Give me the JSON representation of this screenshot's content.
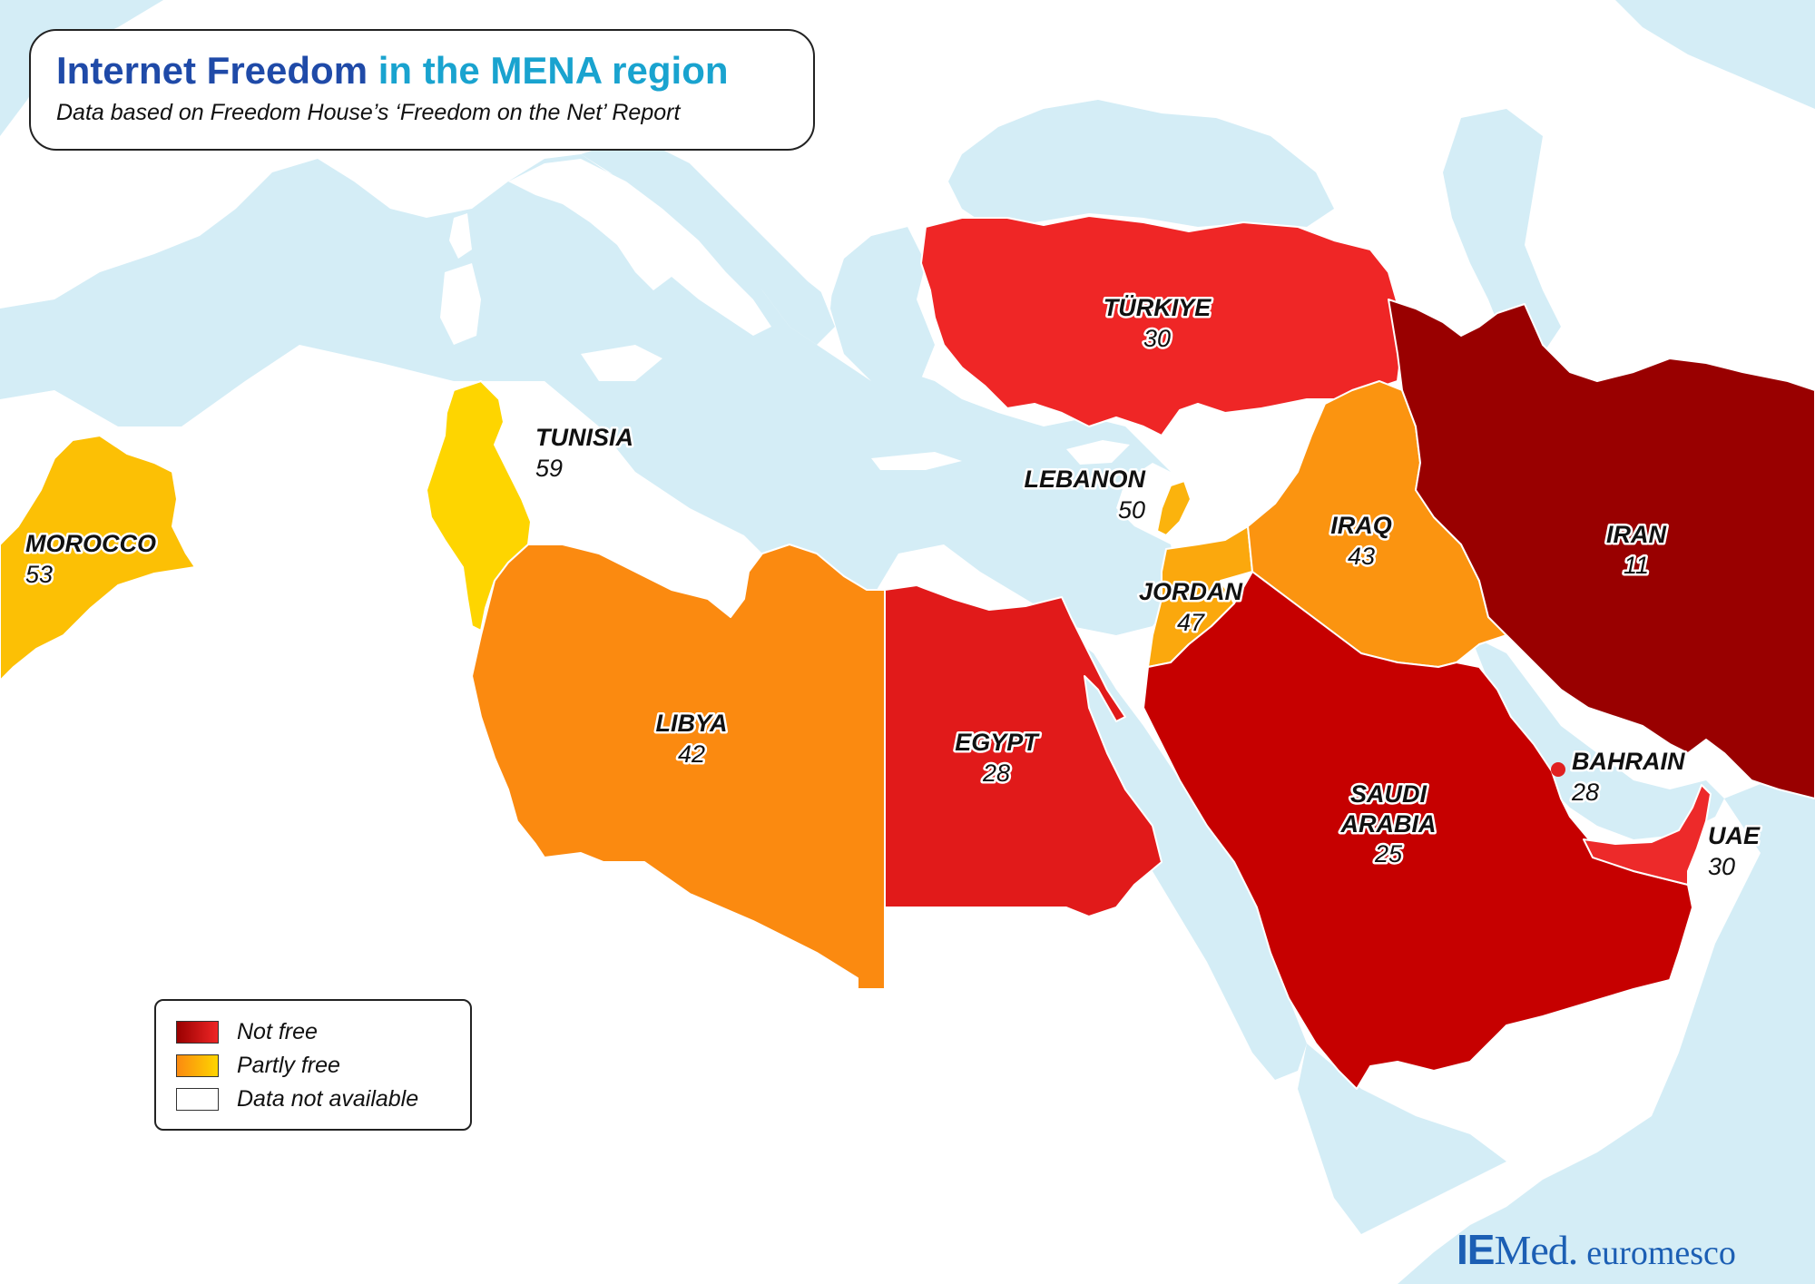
{
  "map": {
    "title_part1": "Internet Freedom",
    "title_part2": "in the MENA region",
    "subtitle": "Data based on Freedom House’s ‘Freedom on the Net’ Report",
    "legend": {
      "not_free": "Not free",
      "partly_free": "Partly free",
      "not_available": "Data not available"
    },
    "countries": {
      "morocco": {
        "name": "MOROCCO",
        "score": "53",
        "status": "Partly free"
      },
      "tunisia": {
        "name": "TUNISIA",
        "score": "59",
        "status": "Partly free"
      },
      "libya": {
        "name": "LIBYA",
        "score": "42",
        "status": "Partly free"
      },
      "egypt": {
        "name": "EGYPT",
        "score": "28",
        "status": "Not free"
      },
      "turkiye": {
        "name": "TÜRKIYE",
        "score": "30",
        "status": "Not free"
      },
      "lebanon": {
        "name": "LEBANON",
        "score": "50",
        "status": "Partly free"
      },
      "jordan": {
        "name": "JORDAN",
        "score": "47",
        "status": "Partly free"
      },
      "iraq": {
        "name": "IRAQ",
        "score": "43",
        "status": "Partly free"
      },
      "iran": {
        "name": "IRAN",
        "score": "11",
        "status": "Not free"
      },
      "saudi_arabia": {
        "name_line1": "SAUDI",
        "name_line2": "ARABIA",
        "score": "25",
        "status": "Not free"
      },
      "bahrain": {
        "name": "BAHRAIN",
        "score": "28",
        "status": "Not free"
      },
      "uae": {
        "name": "UAE",
        "score": "30",
        "status": "Not free"
      }
    },
    "logos": {
      "iemed_bold": "IE",
      "iemed_rest": "Med.",
      "euromesco": "euromesco"
    },
    "colors": {
      "sea": "#d4edf6",
      "iran": "#990000",
      "saudi_arabia": "#c60000",
      "egypt": "#e11a1a",
      "turkiye": "#ef2626",
      "uae": "#ed2a2a",
      "bahrain": "#e02020",
      "libya": "#fb8a10",
      "iraq": "#fb9410",
      "jordan": "#fba80d",
      "lebanon": "#fbb30d",
      "morocco": "#fcc005",
      "tunisia": "#fed500",
      "title_dark": "#1f4aa8",
      "title_light": "#19a3cf"
    }
  }
}
